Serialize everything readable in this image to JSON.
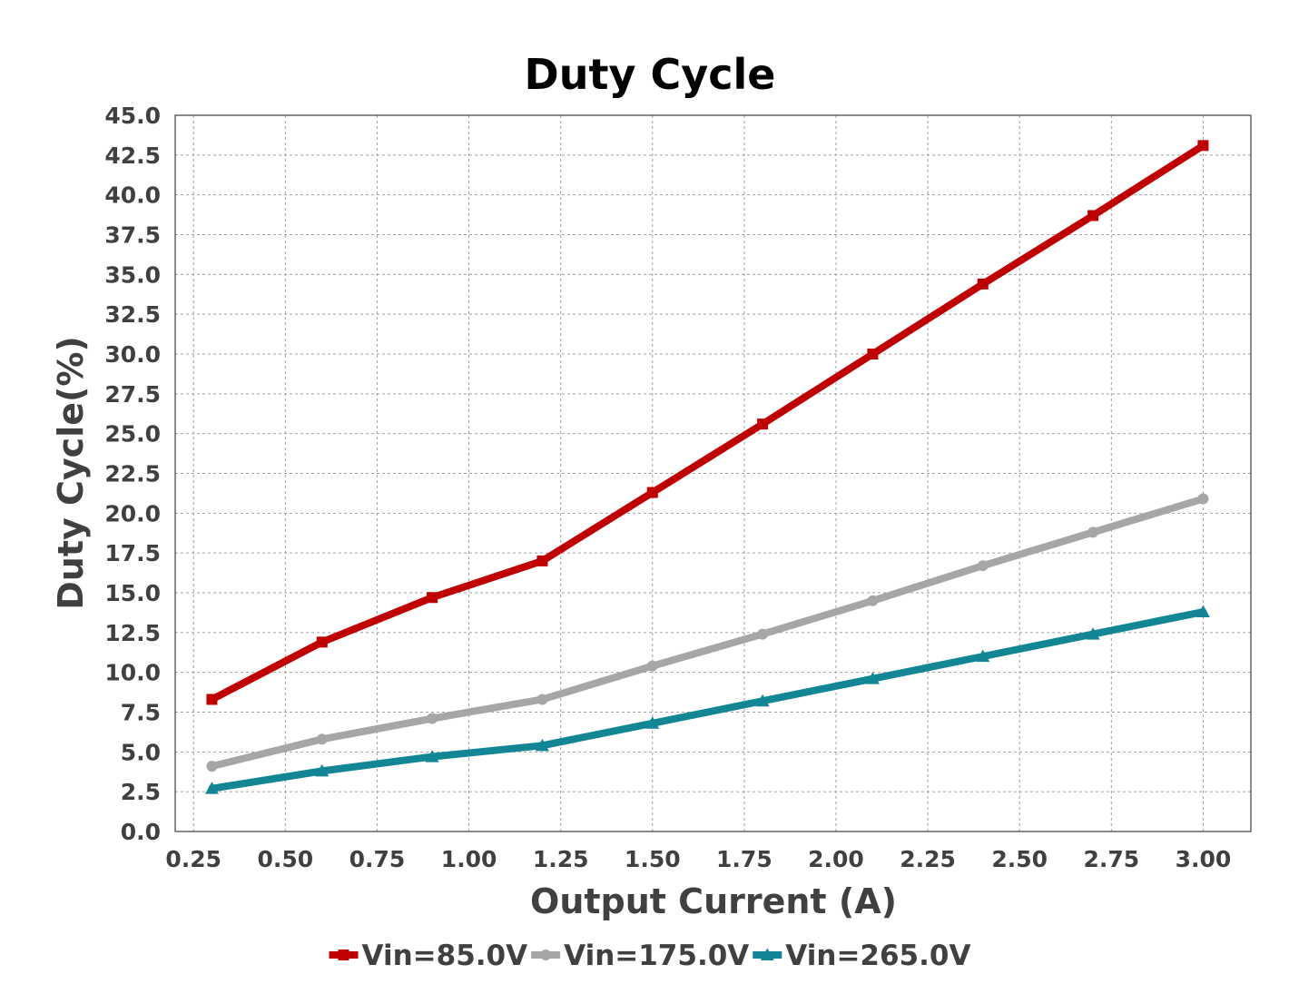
{
  "chart_data": {
    "type": "line",
    "title": "Duty Cycle",
    "xlabel": "Output Current (A)",
    "ylabel": "Duty Cycle(%)",
    "x": [
      0.3,
      0.6,
      0.9,
      1.2,
      1.5,
      1.8,
      2.1,
      2.4,
      2.7,
      3.0
    ],
    "xlim": [
      0.2,
      3.13
    ],
    "ylim": [
      0,
      45
    ],
    "xticks": [
      0.25,
      0.5,
      0.75,
      1.0,
      1.25,
      1.5,
      1.75,
      2.0,
      2.25,
      2.5,
      2.75,
      3.0
    ],
    "xtick_labels": [
      "0.25",
      "0.50",
      "0.75",
      "1.00",
      "1.25",
      "1.50",
      "1.75",
      "2.00",
      "2.25",
      "2.50",
      "2.75",
      "3.00"
    ],
    "yticks": [
      0,
      2.5,
      5,
      7.5,
      10,
      12.5,
      15,
      17.5,
      20,
      22.5,
      25,
      27.5,
      30,
      32.5,
      35,
      37.5,
      40,
      42.5,
      45
    ],
    "ytick_labels": [
      "0.0",
      "2.5",
      "5.0",
      "7.5",
      "10.0",
      "12.5",
      "15.0",
      "17.5",
      "20.0",
      "22.5",
      "25.0",
      "27.5",
      "30.0",
      "32.5",
      "35.0",
      "37.5",
      "40.0",
      "42.5",
      "45.0"
    ],
    "grid": true,
    "legend_position": "bottom",
    "series": [
      {
        "name": "Vin=85.0V",
        "color": "#c00000",
        "marker": "square",
        "values": [
          8.3,
          11.9,
          14.7,
          17.0,
          21.3,
          25.6,
          30.0,
          34.4,
          38.7,
          43.1
        ]
      },
      {
        "name": "Vin=175.0V",
        "color": "#a6a6a6",
        "marker": "circle",
        "values": [
          4.1,
          5.8,
          7.1,
          8.3,
          10.4,
          12.4,
          14.5,
          16.7,
          18.8,
          20.9
        ]
      },
      {
        "name": "Vin=265.0V",
        "color": "#138695",
        "marker": "triangle",
        "values": [
          2.7,
          3.8,
          4.7,
          5.4,
          6.8,
          8.2,
          9.6,
          11.0,
          12.4,
          13.8
        ]
      }
    ]
  }
}
